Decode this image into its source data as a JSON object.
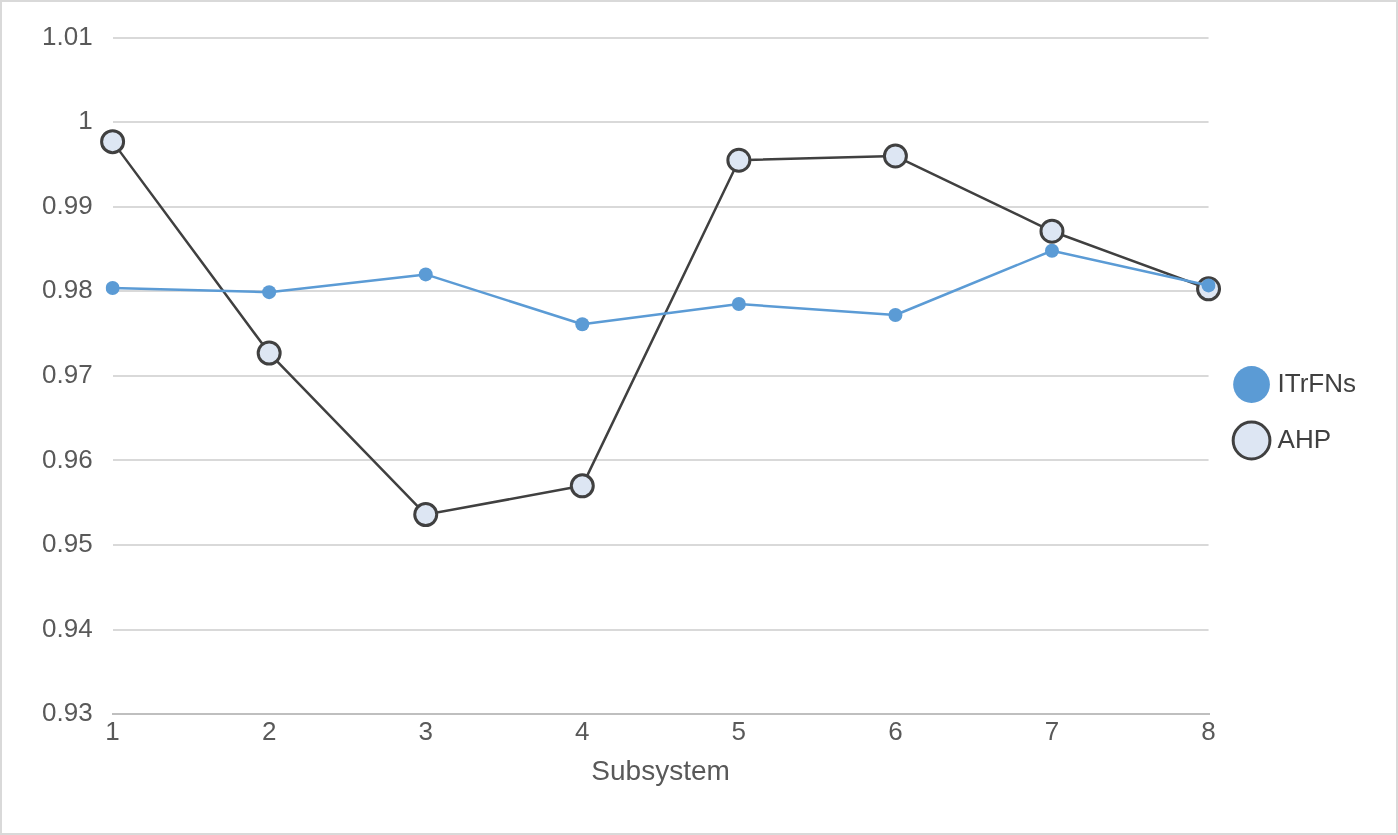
{
  "chart_data": {
    "type": "line",
    "xlabel": "Subsystem",
    "categories": [
      "1",
      "2",
      "3",
      "4",
      "5",
      "6",
      "7",
      "8"
    ],
    "series": [
      {
        "name": "ITrFNs",
        "color": "#5b9bd5",
        "marker": "circle",
        "values": [
          0.9804,
          0.9799,
          0.982,
          0.9761,
          0.9785,
          0.9772,
          0.9848,
          0.9807
        ]
      },
      {
        "name": "AHP",
        "color": "#404040",
        "marker": "circle",
        "values": [
          0.9977,
          0.9727,
          0.9536,
          0.957,
          0.9955,
          0.996,
          0.9871,
          0.9803
        ]
      }
    ],
    "ylim": [
      0.93,
      1.01
    ],
    "yticks": [
      0.93,
      0.94,
      0.95,
      0.96,
      0.97,
      0.98,
      0.99,
      1,
      1.01
    ],
    "grid": "y",
    "legend": "right"
  }
}
